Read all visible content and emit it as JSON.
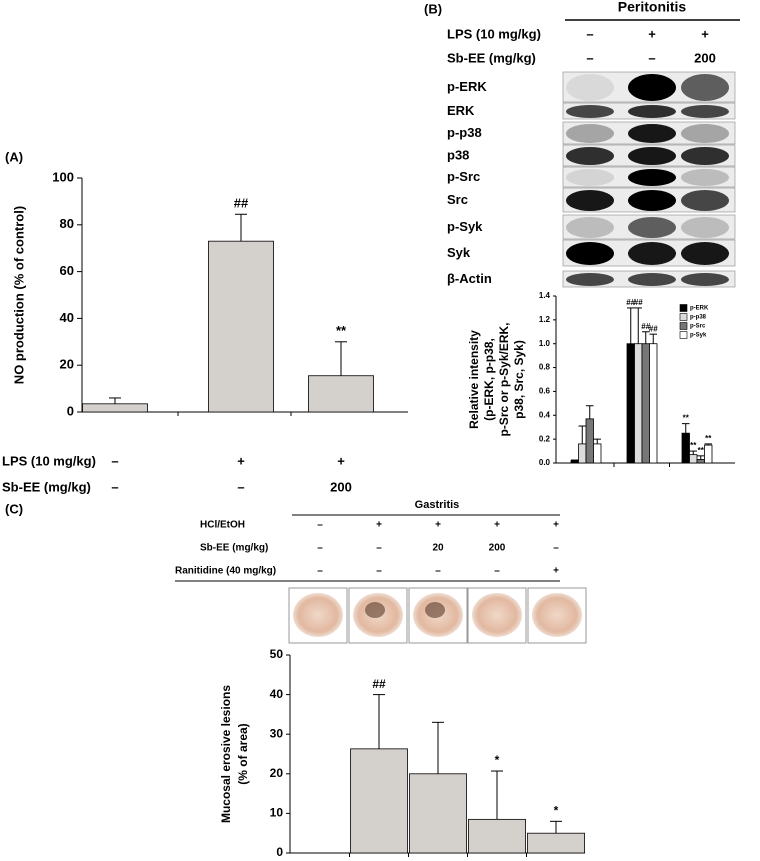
{
  "panel_labels": [
    "(A)",
    "(B)",
    "(C)"
  ],
  "blot": {
    "condition": "Peritonitis",
    "treatments": [
      {
        "label": "LPS (10 mg/kg)",
        "values": [
          "–",
          "+",
          "+"
        ]
      },
      {
        "label": "Sb-EE (mg/kg)",
        "values": [
          "–",
          "–",
          "200"
        ]
      }
    ],
    "bands": [
      "p-ERK",
      "ERK",
      "p-p38",
      "p38",
      "p-Src",
      "Src",
      "p-Syk",
      "Syk",
      "β-Actin"
    ]
  },
  "chart_data": [
    {
      "type": "bar",
      "ylabel": [
        "NO production (% of control)"
      ],
      "categories": [
        null,
        null,
        null
      ],
      "values": [
        3.5,
        73,
        15.5
      ],
      "errors": [
        2.5,
        11.5,
        14.5
      ],
      "annotations": [
        null,
        "##",
        "**"
      ],
      "color": "#d4d0cc",
      "ylim": [
        0,
        100
      ],
      "yticks": [
        0,
        20,
        40,
        60,
        80,
        100
      ],
      "treatments": [
        {
          "label": "LPS (10 mg/kg)",
          "values": [
            "–",
            "+",
            "+"
          ]
        },
        {
          "label": "Sb-EE (mg/kg)",
          "values": [
            "–",
            "–",
            "200"
          ]
        }
      ]
    },
    {
      "type": "bar",
      "ylabel": [
        "Relative intensity",
        "(p-ERK, p-p38,",
        "p-Src or p-Syk/ERK,",
        "p38, Src, Syk)"
      ],
      "categories": [
        null,
        null,
        null
      ],
      "series": [
        {
          "name": "p-ERK",
          "color": "#000000",
          "values": [
            0.02,
            1.0,
            0.25
          ],
          "errors": [
            0.005,
            0.3,
            0.08
          ],
          "annotations": [
            null,
            "##",
            "**"
          ]
        },
        {
          "name": "p-p38",
          "color": "#dcdcdc",
          "values": [
            0.16,
            1.0,
            0.07
          ],
          "errors": [
            0.15,
            0.3,
            0.03
          ],
          "annotations": [
            null,
            "##",
            "**"
          ]
        },
        {
          "name": "p-Src",
          "color": "#777777",
          "values": [
            0.37,
            1.0,
            0.03
          ],
          "errors": [
            0.11,
            0.1,
            0.03
          ],
          "annotations": [
            null,
            "##",
            "**"
          ]
        },
        {
          "name": "p-Syk",
          "color": "#ffffff",
          "values": [
            0.16,
            1.0,
            0.15
          ],
          "errors": [
            0.04,
            0.08,
            0.01
          ],
          "annotations": [
            null,
            "##",
            "**"
          ]
        }
      ],
      "ylim": [
        0,
        1.4
      ],
      "yticks": [
        {
          "value": 0,
          "label": "0.0"
        },
        0.2,
        0.4,
        0.6,
        0.8,
        {
          "value": 1,
          "label": "1.0"
        },
        1.2,
        1.4
      ],
      "legend": "upper right"
    },
    {
      "type": "bar",
      "ylabel": [
        "Mucosal erosive lesions",
        "(% of area)"
      ],
      "condition": "Gastritis",
      "categories": [
        null,
        null,
        null,
        null,
        null
      ],
      "values": [
        0,
        26.3,
        20,
        8.5,
        5
      ],
      "errors": [
        0,
        13.7,
        13,
        12.2,
        3
      ],
      "annotations": [
        null,
        "##",
        null,
        "*",
        "*"
      ],
      "color": "#d4d0cc",
      "ylim": [
        0,
        50
      ],
      "yticks": [
        0,
        10,
        20,
        30,
        40,
        50
      ],
      "treatments": [
        {
          "label": "HCl/EtOH",
          "values": [
            "–",
            "+",
            "+",
            "+",
            "+"
          ]
        },
        {
          "label": "Sb-EE (mg/kg)",
          "values": [
            "–",
            "–",
            "20",
            "200",
            "–"
          ]
        },
        {
          "label": "Ranitidine (40 mg/kg)",
          "values": [
            "–",
            "–",
            "–",
            "–",
            "+"
          ]
        }
      ]
    }
  ]
}
